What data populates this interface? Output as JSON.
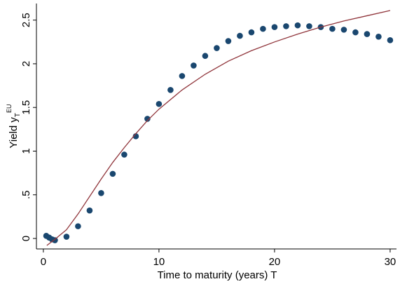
{
  "chart_data": {
    "type": "scatter",
    "xlabel": "Time to maturity (years) T",
    "ylabel": "Yield y",
    "ylabel_sub": "T",
    "ylabel_sup": "EU",
    "xlim": [
      -0.6,
      30.55
    ],
    "ylim": [
      -0.12,
      2.69
    ],
    "xticks": [
      0,
      10,
      20,
      30
    ],
    "yticks": [
      0,
      {
        "value": 0.5,
        "label": ".5"
      },
      1,
      1.5,
      2,
      2.5
    ],
    "series": [
      {
        "type": "scatter",
        "color": "#1a476f",
        "x": [
          0.25,
          0.5,
          0.75,
          1,
          2,
          3,
          4,
          5,
          6,
          7,
          8,
          9,
          10,
          11,
          12,
          13,
          14,
          15,
          16,
          17,
          18,
          19,
          20,
          21,
          22,
          23,
          24,
          25,
          26,
          27,
          28,
          29,
          30
        ],
        "values": [
          0.03,
          0.01,
          -0.01,
          -0.02,
          0.02,
          0.14,
          0.32,
          0.52,
          0.74,
          0.96,
          1.17,
          1.37,
          1.54,
          1.7,
          1.86,
          1.98,
          2.09,
          2.18,
          2.26,
          2.32,
          2.36,
          2.4,
          2.42,
          2.43,
          2.44,
          2.43,
          2.42,
          2.4,
          2.39,
          2.36,
          2.34,
          2.31,
          2.27
        ]
      },
      {
        "type": "line",
        "color": "#90353b",
        "x": [
          0.3,
          1,
          2,
          3,
          4,
          5,
          6,
          7,
          8,
          9,
          10,
          12,
          14,
          16,
          18,
          20,
          22,
          24,
          26,
          28,
          30
        ],
        "values": [
          -0.08,
          -0.01,
          0.1,
          0.28,
          0.48,
          0.68,
          0.87,
          1.04,
          1.2,
          1.35,
          1.48,
          1.7,
          1.88,
          2.03,
          2.15,
          2.25,
          2.34,
          2.42,
          2.49,
          2.55,
          2.61
        ]
      }
    ]
  }
}
